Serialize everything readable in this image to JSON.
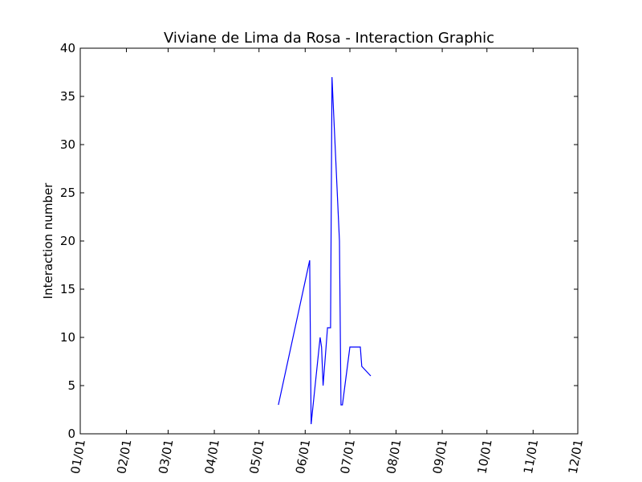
{
  "chart_data": {
    "type": "line",
    "title": "Viviane de Lima da Rosa - Interaction Graphic",
    "xlabel": "",
    "ylabel": "Interaction number",
    "xlim": [
      "2015-01-01",
      "2015-12-01"
    ],
    "ylim": [
      0,
      40
    ],
    "x_ticks": [
      "01/01",
      "02/01",
      "03/01",
      "04/01",
      "05/01",
      "06/01",
      "07/01",
      "08/01",
      "09/01",
      "10/01",
      "11/01",
      "12/01"
    ],
    "y_ticks": [
      "0",
      "5",
      "10",
      "15",
      "20",
      "25",
      "30",
      "35",
      "40"
    ],
    "y_tick_values": [
      0,
      5,
      10,
      15,
      20,
      25,
      30,
      35,
      40
    ],
    "grid": false,
    "color": "#0000ff",
    "series": [
      {
        "x": [
          "2015-05-14",
          "2015-06-04",
          "2015-06-05",
          "2015-06-11",
          "2015-06-12",
          "2015-06-13",
          "2015-06-15",
          "2015-06-16",
          "2015-06-18",
          "2015-06-19",
          "2015-06-24",
          "2015-06-25",
          "2015-06-26",
          "2015-07-01",
          "2015-07-02",
          "2015-07-08",
          "2015-07-09",
          "2015-07-15"
        ],
        "y": [
          3,
          18,
          1,
          10,
          9,
          5,
          9,
          11,
          11,
          37,
          20,
          3,
          3,
          9,
          9,
          9,
          7,
          6
        ]
      }
    ]
  }
}
